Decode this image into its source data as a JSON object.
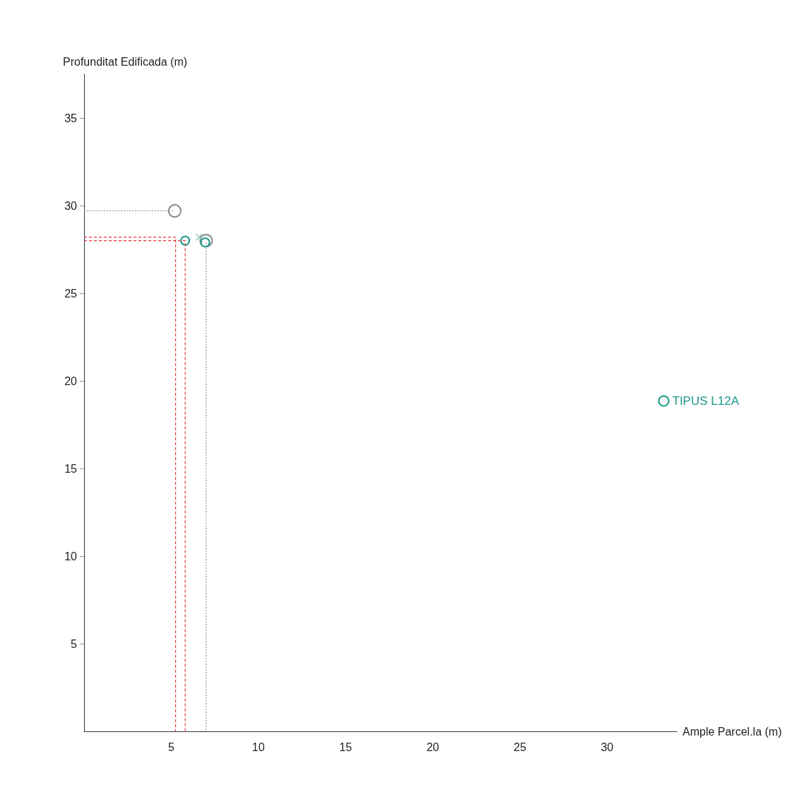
{
  "chart_data": {
    "type": "scatter",
    "xlabel": "Ample Parcel.la (m)",
    "ylabel": "Profunditat Edificada (m)",
    "xlim": [
      0,
      34
    ],
    "xticks": [
      5,
      10,
      15,
      20,
      25,
      30
    ],
    "ylim": [
      0,
      37.5
    ],
    "yticks": [
      5,
      10,
      15,
      20,
      25,
      30,
      35
    ],
    "grid": false,
    "legend": "right",
    "series": [
      {
        "type": "line",
        "color": "#999999",
        "x": [
          0,
          5.2
        ],
        "values": [
          29.7,
          29.7
        ],
        "marker": "none",
        "line_style": "dotted"
      },
      {
        "type": "line",
        "color": "#e8303a",
        "x": [
          0,
          5.25,
          5.25
        ],
        "values": [
          28.2,
          28.2,
          0
        ],
        "marker": "none",
        "line_style": "dashed"
      },
      {
        "type": "line",
        "color": "#e8303a",
        "x": [
          0,
          5.8,
          5.8
        ],
        "values": [
          28.0,
          28.0,
          0
        ],
        "marker": "none",
        "line_style": "dashed"
      },
      {
        "type": "line",
        "color": "#999999",
        "x": [
          7.0,
          7.0
        ],
        "values": [
          27.9,
          0
        ],
        "marker": "none",
        "line_style": "dotted"
      },
      {
        "color": "#888888",
        "x": [
          5.2,
          7.0
        ],
        "values": [
          29.7,
          28.0
        ],
        "marker": "circle"
      },
      {
        "color": "#7fbfb5",
        "x": [
          6.6
        ],
        "values": [
          28.2
        ],
        "marker": "cross"
      },
      {
        "name": "TIPUS L12A",
        "color": "#1a9a8a",
        "x": [
          5.8,
          6.95
        ],
        "values": [
          28.0,
          27.9
        ],
        "marker": "circle"
      }
    ]
  }
}
